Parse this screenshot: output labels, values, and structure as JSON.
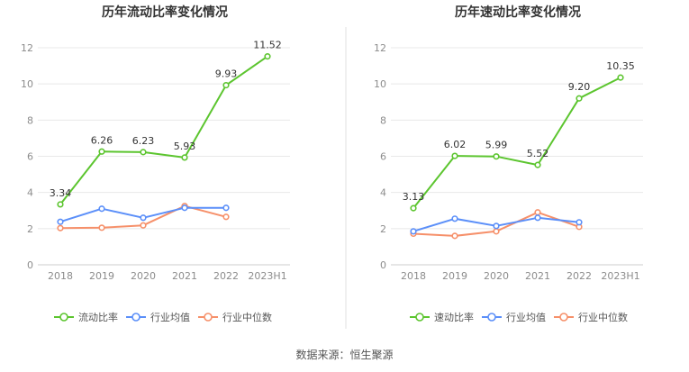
{
  "colors": {
    "primary": "#5cc52f",
    "industry_avg": "#5b8ff9",
    "industry_median": "#f6906a",
    "grid": "#e8e8e8",
    "axis_text": "#8c8c8c",
    "divider": "#e0e0e0"
  },
  "source": "数据来源：恒生聚源",
  "chart_data": [
    {
      "type": "line",
      "title": "历年流动比率变化情况",
      "categories": [
        "2018",
        "2019",
        "2020",
        "2021",
        "2022",
        "2023H1"
      ],
      "ylim": [
        0,
        12
      ],
      "yticks": [
        0,
        2,
        4,
        6,
        8,
        10,
        12
      ],
      "grid": true,
      "legend_position": "bottom",
      "series": [
        {
          "name": "流动比率",
          "values": [
            3.34,
            6.26,
            6.23,
            5.93,
            9.93,
            11.52
          ],
          "labels": [
            "3.34",
            "6.26",
            "6.23",
            "5.93",
            "9.93",
            "11.52"
          ]
        },
        {
          "name": "行业均值",
          "values": [
            2.38,
            3.1,
            2.6,
            3.15,
            3.15,
            null
          ]
        },
        {
          "name": "行业中位数",
          "values": [
            2.03,
            2.05,
            2.18,
            3.25,
            2.65,
            null
          ]
        }
      ]
    },
    {
      "type": "line",
      "title": "历年速动比率变化情况",
      "categories": [
        "2018",
        "2019",
        "2020",
        "2021",
        "2022",
        "2023H1"
      ],
      "ylim": [
        0,
        12
      ],
      "yticks": [
        0,
        2,
        4,
        6,
        8,
        10,
        12
      ],
      "grid": true,
      "legend_position": "bottom",
      "series": [
        {
          "name": "速动比率",
          "values": [
            3.13,
            6.02,
            5.99,
            5.52,
            9.2,
            10.35
          ],
          "labels": [
            "3.13",
            "6.02",
            "5.99",
            "5.52",
            "9.20",
            "10.35"
          ]
        },
        {
          "name": "行业均值",
          "values": [
            1.85,
            2.55,
            2.15,
            2.6,
            2.35,
            null
          ]
        },
        {
          "name": "行业中位数",
          "values": [
            1.72,
            1.6,
            1.85,
            2.9,
            2.1,
            null
          ]
        }
      ]
    }
  ]
}
